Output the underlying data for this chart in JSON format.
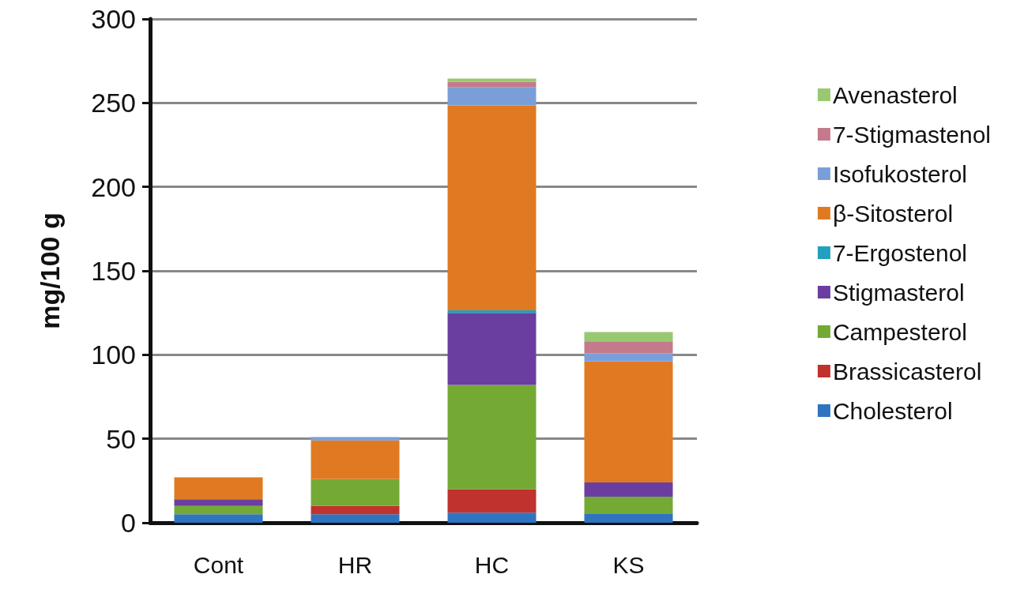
{
  "chart_data": {
    "type": "bar",
    "stacked": true,
    "ylabel": "mg/100 g",
    "categories": [
      "Cont",
      "HR",
      "HC",
      "KS"
    ],
    "series": [
      {
        "name": "Cholesterol",
        "color": "#2f74c0",
        "values": [
          5,
          5,
          6,
          5.5
        ]
      },
      {
        "name": "Brassicasterol",
        "color": "#c0322e",
        "values": [
          0,
          5,
          14,
          0
        ]
      },
      {
        "name": "Campesterol",
        "color": "#74aa34",
        "values": [
          5,
          16,
          62,
          10
        ]
      },
      {
        "name": "Stigmasterol",
        "color": "#6a3ea0",
        "values": [
          4,
          0,
          43,
          8.5
        ]
      },
      {
        "name": "7-Ergostenol",
        "color": "#22a0be",
        "values": [
          0,
          0,
          1.5,
          0
        ]
      },
      {
        "name": "β-Sitosterol",
        "color": "#e07a22",
        "values": [
          13,
          23,
          122,
          72
        ]
      },
      {
        "name": "Isofukosterol",
        "color": "#7a9fd8",
        "values": [
          0,
          2,
          11,
          5
        ]
      },
      {
        "name": "7-Stigmastenol",
        "color": "#c47a8c",
        "values": [
          0,
          0,
          3,
          7
        ]
      },
      {
        "name": "Avenasterol",
        "color": "#98c870",
        "values": [
          0,
          0,
          2,
          5.5
        ]
      }
    ],
    "ylim": [
      0,
      300
    ],
    "yticks": [
      0,
      50,
      100,
      150,
      200,
      250,
      300
    ],
    "grid": "y",
    "legend": "right"
  }
}
